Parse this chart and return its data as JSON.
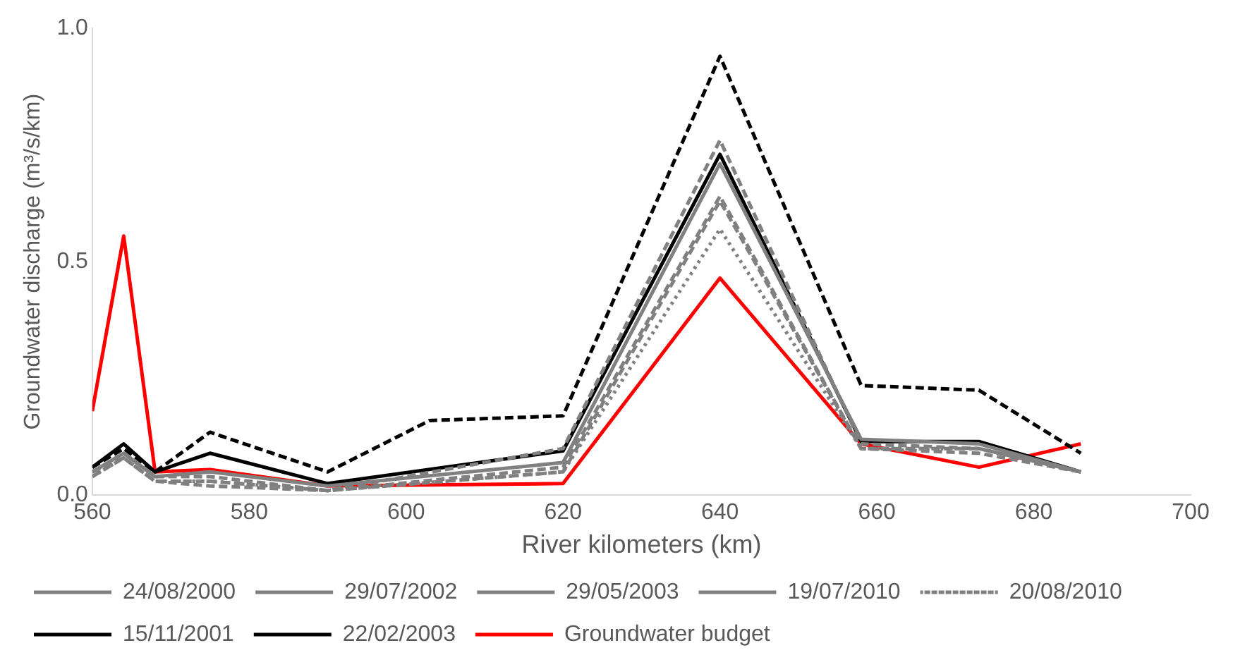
{
  "chart_data": {
    "type": "line",
    "xlabel": "River kilometers (km)",
    "ylabel": "Groundwater discharge (m³/s/km)",
    "xlim": [
      560,
      700
    ],
    "xticks": [
      560,
      580,
      600,
      620,
      640,
      660,
      680,
      700
    ],
    "ylim": [
      0,
      1
    ],
    "yticks": [
      {
        "value": 0,
        "label": "0.0"
      },
      0.5,
      {
        "value": 1,
        "label": "1.0"
      }
    ],
    "grid": false,
    "legend": "bottom",
    "marker": "none",
    "x": [
      560,
      564,
      568,
      575,
      590,
      620,
      640,
      658,
      673,
      686
    ],
    "series": [
      {
        "name": "24/08/2000",
        "color": "#808080",
        "line_style": "dashed",
        "values": [
          0.04,
          0.08,
          0.03,
          0.02,
          0.01,
          0.05,
          0.63,
          0.1,
          0.09,
          0.05
        ]
      },
      {
        "name": "29/07/2002",
        "color": "#808080",
        "line_style": "solid",
        "values": [
          0.05,
          0.09,
          0.04,
          0.05,
          0.02,
          0.07,
          0.71,
          0.12,
          0.11,
          0.05
        ]
      },
      {
        "name": "29/05/2003",
        "color": "#808080",
        "line_style": "dashed",
        "values": [
          0.05,
          0.09,
          0.04,
          0.04,
          0.01,
          0.1,
          0.76,
          0.11,
          0.1,
          0.05
        ]
      },
      {
        "name": "19/07/2010",
        "color": "#808080",
        "line_style": "dashed",
        "values": [
          0.05,
          0.08,
          0.03,
          0.03,
          0.01,
          0.06,
          0.64,
          0.1,
          0.1,
          0.05
        ]
      },
      {
        "name": "20/08/2010",
        "color": "#808080",
        "line_style": "dotted",
        "values": [
          0.04,
          0.08,
          0.03,
          0.03,
          0.01,
          0.05,
          0.57,
          0.1,
          0.1,
          0.05
        ]
      },
      {
        "name": "15/11/2001",
        "color": "#000000",
        "line_style": "solid",
        "values": [
          0.06,
          0.11,
          0.05,
          0.09,
          0.025,
          0.095,
          0.73,
          0.115,
          0.115,
          0.05
        ]
      },
      {
        "name": "22/02/2003",
        "color": "#000000",
        "line_style": "dashed",
        "x": [
          560,
          564,
          568,
          575,
          590,
          603,
          620,
          640,
          658,
          673,
          686
        ],
        "values": [
          0.06,
          0.1,
          0.05,
          0.135,
          0.05,
          0.16,
          0.17,
          0.94,
          0.235,
          0.225,
          0.09
        ]
      },
      {
        "name": "Groundwater budget",
        "color": "#ff0000",
        "line_style": "solid",
        "values": [
          0.18,
          0.555,
          0.05,
          0.055,
          0.02,
          0.025,
          0.465,
          0.11,
          0.06,
          0.11
        ]
      }
    ]
  }
}
